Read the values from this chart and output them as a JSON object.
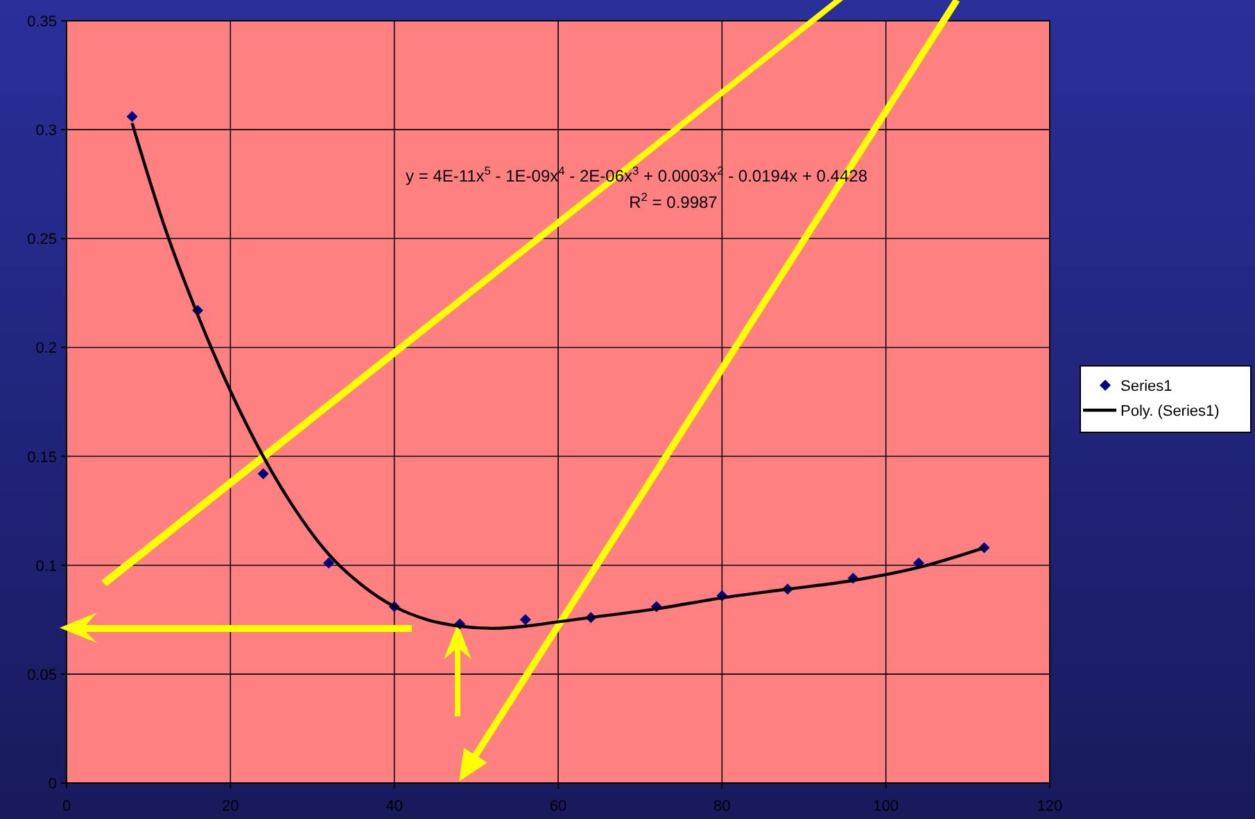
{
  "chart_data": {
    "type": "scatter",
    "xlim": [
      0,
      120
    ],
    "xticks": [
      0,
      20,
      40,
      60,
      80,
      100,
      120
    ],
    "ylim": [
      0,
      0.35
    ],
    "yticks": [
      0,
      0.05,
      0.1,
      0.15,
      0.2,
      0.25,
      0.3,
      0.35
    ],
    "grid": true,
    "legend": "right",
    "marker": "diamond",
    "series": [
      {
        "name": "Series1",
        "color": "#000080",
        "x": [
          8,
          16,
          24,
          32,
          40,
          48,
          56,
          64,
          72,
          80,
          88,
          96,
          104,
          112
        ],
        "values": [
          0.306,
          0.217,
          0.142,
          0.101,
          0.081,
          0.073,
          0.075,
          0.076,
          0.081,
          0.086,
          0.089,
          0.094,
          0.101,
          0.108
        ]
      },
      {
        "name": "Poly. (Series1)",
        "type": "line",
        "color": "#000000",
        "marker": "none",
        "x": [
          8,
          12,
          16,
          20,
          24,
          28,
          32,
          36,
          40,
          44,
          48,
          52,
          56,
          60,
          64,
          72,
          80,
          88,
          96,
          104,
          112
        ],
        "values": [
          0.303,
          0.255,
          0.215,
          0.18,
          0.15,
          0.125,
          0.105,
          0.091,
          0.081,
          0.075,
          0.072,
          0.071,
          0.072,
          0.074,
          0.076,
          0.08,
          0.085,
          0.089,
          0.093,
          0.099,
          0.108
        ]
      }
    ],
    "annotations": [
      "y = 4E-11x$^{5}$ - 1E-09x$^{4}$ - 2E-06x$^{3}$ + 0.0003x$^{2}$ - 0.0194x + 0.4428",
      "R$^{2}$ = 0.9987"
    ]
  }
}
